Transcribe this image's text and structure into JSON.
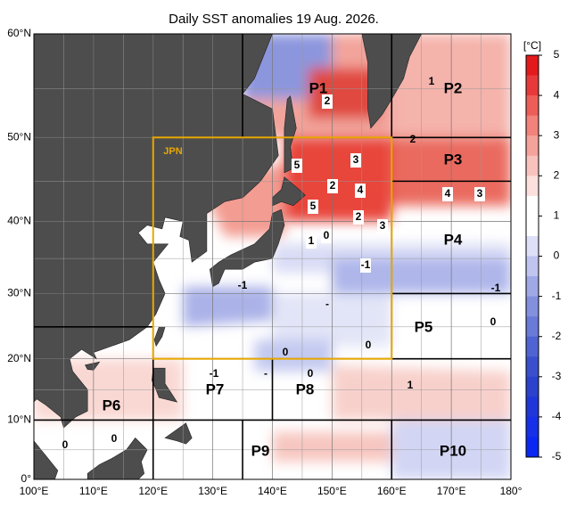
{
  "title": "Daily SST anomalies 19 Aug. 2026.",
  "xticks": [
    {
      "value": 100,
      "label": "100°E"
    },
    {
      "value": 110,
      "label": "110°E"
    },
    {
      "value": 120,
      "label": "120°E"
    },
    {
      "value": 130,
      "label": "130°E"
    },
    {
      "value": 140,
      "label": "140°E"
    },
    {
      "value": 150,
      "label": "150°E"
    },
    {
      "value": 160,
      "label": "160°E"
    },
    {
      "value": 170,
      "label": "170°E"
    },
    {
      "value": 180,
      "label": "180°"
    }
  ],
  "yticks": [
    {
      "value": 0,
      "label": "0°"
    },
    {
      "value": 10,
      "label": "10°N"
    },
    {
      "value": 20,
      "label": "20°N"
    },
    {
      "value": 30,
      "label": "30°N"
    },
    {
      "value": 40,
      "label": "40°N"
    },
    {
      "value": 50,
      "label": "50°N"
    },
    {
      "value": 60,
      "label": "60°N"
    }
  ],
  "box_label": "JPN",
  "regions": [
    "P1",
    "P2",
    "P3",
    "P4",
    "P5",
    "P6",
    "P7",
    "P8",
    "P9",
    "P10"
  ],
  "contour_labels": [
    "2",
    "1",
    "2",
    "5",
    "3",
    "2",
    "4",
    "5",
    "2",
    "3",
    "4",
    "3",
    "1",
    "0",
    "-1",
    "-1",
    "-1",
    "-",
    "0",
    "0",
    "0",
    "-1",
    "-",
    "0",
    "1",
    "0",
    "0"
  ],
  "colorbar": {
    "unit": "[°C]",
    "ticks": [
      5,
      4,
      3,
      2,
      1,
      0,
      -1,
      -2,
      -3,
      -4,
      -5
    ]
  }
}
